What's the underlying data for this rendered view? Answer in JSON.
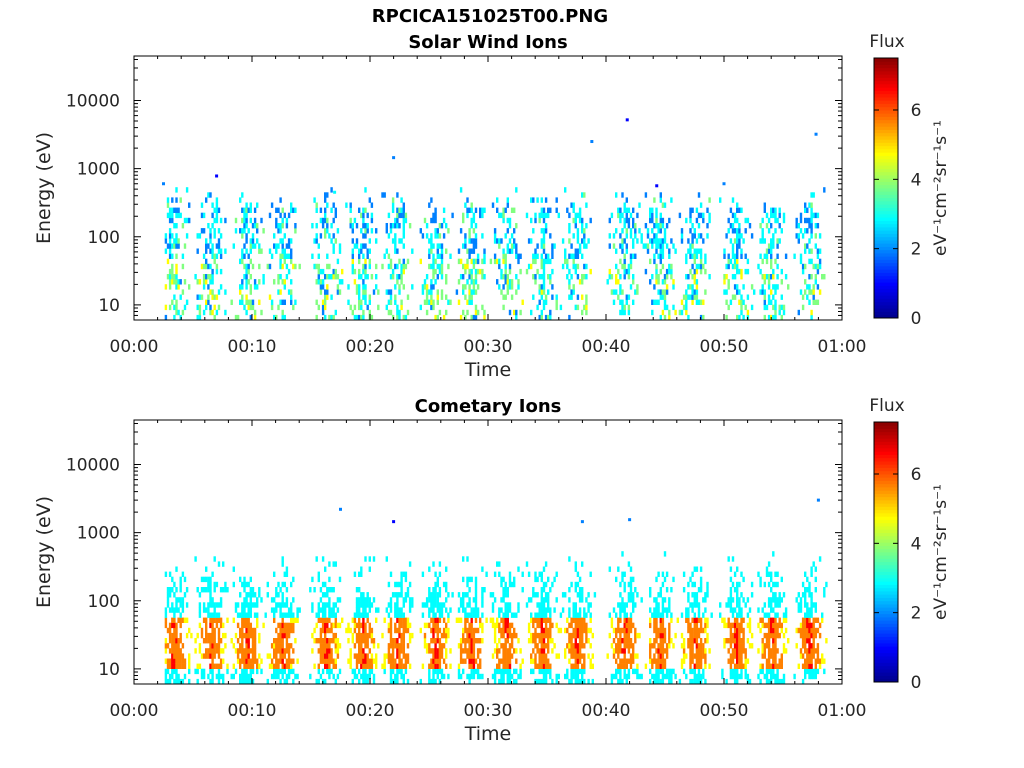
{
  "figure": {
    "title": "RPCICA151025T00.PNG",
    "background": "#ffffff"
  },
  "colormap": [
    "#00008f",
    "#0000ff",
    "#0080ff",
    "#00ffff",
    "#80ff80",
    "#ffff00",
    "#ff8000",
    "#ff0000",
    "#800000"
  ],
  "chart_data": [
    {
      "type": "heatmap",
      "title": "Solar Wind Ions",
      "xlabel": "Time",
      "ylabel": "Energy (eV)",
      "x_ticks": [
        "00:00",
        "00:10",
        "00:20",
        "00:30",
        "00:40",
        "00:50",
        "01:00"
      ],
      "x_range_minutes": [
        0,
        60
      ],
      "y_scale": "log",
      "y_ticks": [
        "10",
        "100",
        "1000",
        "10000"
      ],
      "y_range": [
        6,
        45000
      ],
      "colorbar": {
        "title": "Flux",
        "label": "eV⁻¹cm⁻²sr⁻¹s⁻¹",
        "ticks": [
          "0",
          "2",
          "4",
          "6"
        ],
        "range": [
          0,
          7.5
        ]
      },
      "grid": false,
      "bursts_minutes": [
        3.3,
        6.5,
        9.5,
        12.5,
        16.2,
        19.3,
        22.3,
        25.5,
        28.5,
        31.5,
        34.5,
        37.5,
        41.5,
        44.5,
        47.5,
        51.0,
        54.0,
        57.2
      ],
      "burst_core_energy_eV": [
        10,
        250
      ],
      "burst_peak_flux": [
        1.0,
        4.5
      ],
      "outliers": [
        {
          "t": 2.5,
          "e": 600,
          "flux": 1.5
        },
        {
          "t": 7.0,
          "e": 780,
          "flux": 0.6
        },
        {
          "t": 17.0,
          "e": 450,
          "flux": 3.0
        },
        {
          "t": 22.0,
          "e": 1450,
          "flux": 1.5
        },
        {
          "t": 38.8,
          "e": 2500,
          "flux": 1.5
        },
        {
          "t": 41.8,
          "e": 5200,
          "flux": 1.2
        },
        {
          "t": 44.3,
          "e": 560,
          "flux": 0.6
        },
        {
          "t": 50.0,
          "e": 600,
          "flux": 1.5
        },
        {
          "t": 57.8,
          "e": 3200,
          "flux": 2.0
        }
      ]
    },
    {
      "type": "heatmap",
      "title": "Cometary Ions",
      "xlabel": "Time",
      "ylabel": "Energy (eV)",
      "x_ticks": [
        "00:00",
        "00:10",
        "00:20",
        "00:30",
        "00:40",
        "00:50",
        "01:00"
      ],
      "x_range_minutes": [
        0,
        60
      ],
      "y_scale": "log",
      "y_ticks": [
        "10",
        "100",
        "1000",
        "10000"
      ],
      "y_range": [
        6,
        45000
      ],
      "colorbar": {
        "title": "Flux",
        "label": "eV⁻¹cm⁻²sr⁻¹s⁻¹",
        "ticks": [
          "0",
          "2",
          "4",
          "6"
        ],
        "range": [
          0,
          7.5
        ]
      },
      "grid": false,
      "bursts_minutes": [
        3.3,
        6.5,
        9.5,
        12.5,
        16.2,
        19.3,
        22.3,
        25.5,
        28.5,
        31.5,
        34.5,
        37.5,
        41.5,
        44.5,
        47.5,
        51.0,
        54.0,
        57.2
      ],
      "burst_core_energy_eV": [
        10,
        60
      ],
      "burst_peak_flux": [
        4.5,
        6.5
      ],
      "outliers": [
        {
          "t": 17.5,
          "e": 2200,
          "flux": 1.5
        },
        {
          "t": 22.0,
          "e": 1450,
          "flux": 0.6
        },
        {
          "t": 38.0,
          "e": 1450,
          "flux": 2.0
        },
        {
          "t": 42.0,
          "e": 1550,
          "flux": 2.0
        },
        {
          "t": 58.0,
          "e": 3000,
          "flux": 2.0
        }
      ]
    }
  ]
}
